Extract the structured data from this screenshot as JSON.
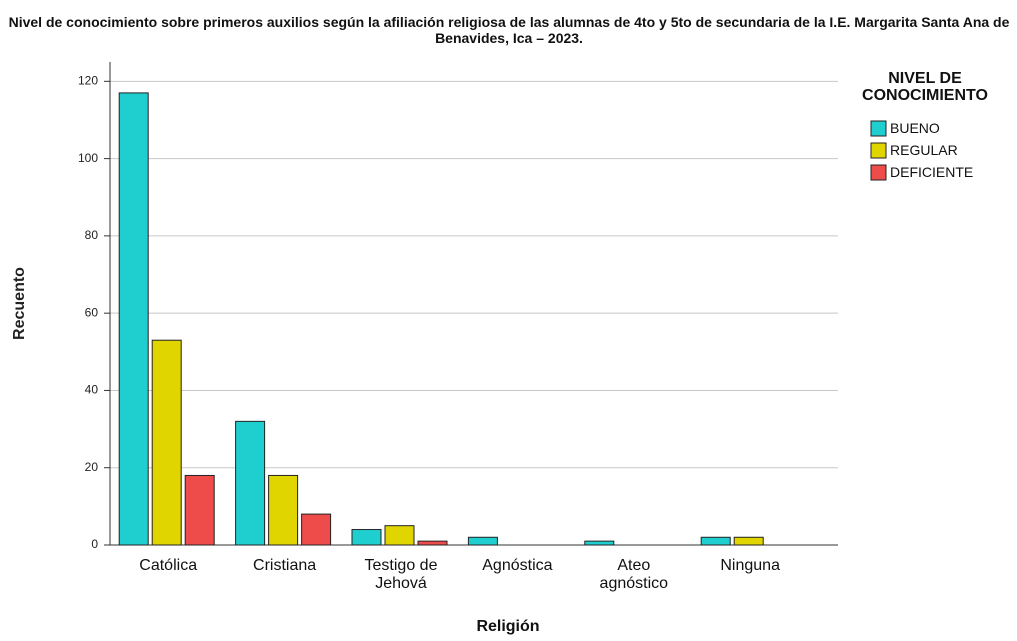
{
  "chart_data": {
    "type": "bar",
    "title": "Nivel de conocimiento sobre primeros auxilios según la afiliación religiosa de las alumnas de 4to y 5to de secundaria de la I.E. Margarita Santa Ana de Benavides, Ica – 2023.",
    "x_label": "Religión",
    "y_label": "Recuento",
    "categories": [
      "Católica",
      "Cristiana",
      "Testigo de Jehová",
      "Agnóstica",
      "Ateo agnóstico",
      "Ninguna"
    ],
    "series": [
      {
        "name": "BUENO",
        "color": "#1fcfcf",
        "values": [
          117,
          32,
          4,
          2,
          1,
          2
        ]
      },
      {
        "name": "REGULAR",
        "color": "#e1d500",
        "values": [
          53,
          18,
          5,
          null,
          null,
          2
        ]
      },
      {
        "name": "DEFICIENTE",
        "color": "#ee4b4b",
        "values": [
          18,
          8,
          1,
          null,
          null,
          null
        ]
      }
    ],
    "legend_title": "NIVEL DE CONOCIMIENTO",
    "legend_position": "right",
    "ylim": [
      0,
      125
    ],
    "yticks": [
      0,
      20,
      40,
      60,
      80,
      100,
      120
    ],
    "grid": true
  }
}
